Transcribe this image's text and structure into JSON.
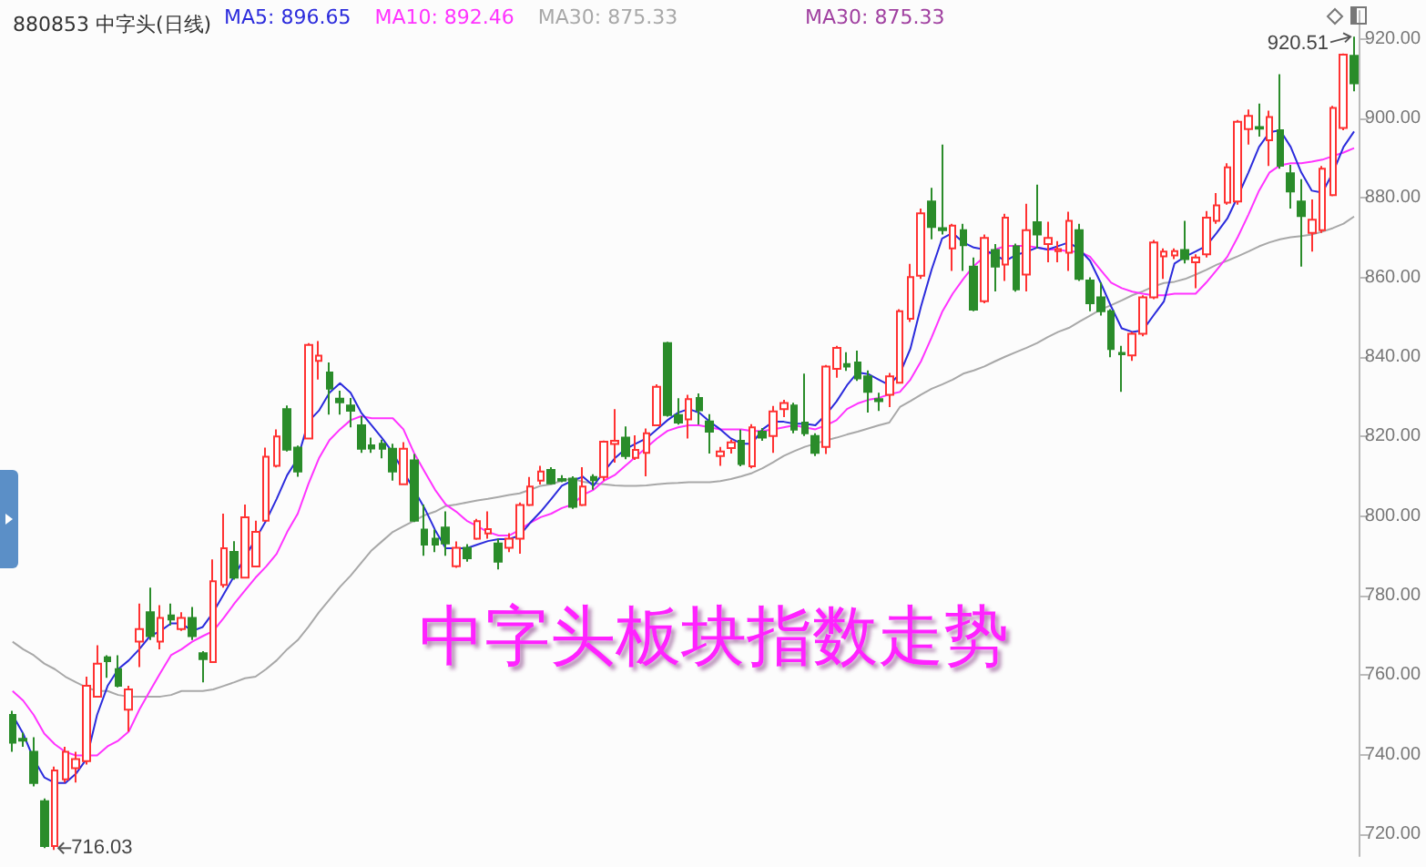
{
  "chart_data": {
    "type": "candlestick",
    "title": "880853 中字头(日线)",
    "legend": "top left",
    "tick_labels": "y",
    "annotations": [
      "920.51",
      "716.03",
      "中字头板块指数走势",
      "MA30: 875.33"
    ],
    "ylim": [
      714.5,
      927
    ],
    "yticks": [
      {
        "value": 720,
        "label": "720.00"
      },
      {
        "value": 740,
        "label": "740.00"
      },
      {
        "value": 760,
        "label": "760.00"
      },
      {
        "value": 780,
        "label": "780.00"
      },
      {
        "value": 800,
        "label": "800.00"
      },
      {
        "value": 820,
        "label": "820.00"
      },
      {
        "value": 840,
        "label": "840.00"
      },
      {
        "value": 860,
        "label": "860.00"
      },
      {
        "value": 880,
        "label": "880.00"
      },
      {
        "value": 900,
        "label": "900.00"
      },
      {
        "value": 920,
        "label": "920.00"
      }
    ],
    "categories": [
      null,
      null,
      null,
      null,
      null,
      null,
      null,
      null,
      null,
      null,
      null,
      null,
      null,
      null,
      null,
      null,
      null,
      null,
      null,
      null,
      null,
      null,
      null,
      null,
      null,
      null,
      null,
      null,
      null,
      null,
      null,
      null,
      null,
      null,
      null,
      null,
      null,
      null,
      null,
      null,
      null,
      null,
      null,
      null,
      null,
      null,
      null,
      null,
      null,
      null,
      null,
      null,
      null,
      null,
      null,
      null,
      null,
      null,
      null,
      null,
      null,
      null,
      null,
      null,
      null,
      null,
      null,
      null,
      null,
      null,
      null,
      null,
      null,
      null,
      null,
      null,
      null,
      null,
      null,
      null,
      null,
      null,
      null,
      null,
      null,
      null,
      null,
      null,
      null,
      null,
      null,
      null,
      null,
      null,
      null,
      null,
      null,
      null,
      null,
      null,
      null,
      null,
      null,
      null,
      null,
      null,
      null,
      null,
      null,
      null,
      null,
      null,
      null,
      null,
      null,
      null,
      null,
      null,
      null,
      null,
      null,
      null,
      null,
      null,
      null,
      null,
      null,
      null
    ],
    "series": [
      {
        "type": "line",
        "name": "MA30: 875.33",
        "color": "#a8a8a8",
        "values": [
          768.4,
          766.5,
          765,
          762.9,
          761.5,
          759.6,
          758.2,
          756.9,
          756,
          756,
          755,
          754.6,
          754.6,
          754.6,
          754.6,
          755,
          756,
          756,
          756,
          756.4,
          757.3,
          758.2,
          759.2,
          759.6,
          761.5,
          763.7,
          766.5,
          768.8,
          772.1,
          775.8,
          779,
          782.2,
          785,
          788.2,
          791.4,
          793.7,
          796,
          797.4,
          798.8,
          800.2,
          801.1,
          802.5,
          802.9,
          803.4,
          803.9,
          804.3,
          804.8,
          805.3,
          805.7,
          806.6,
          807.6,
          808,
          808.9,
          809.4,
          808.6,
          808.2,
          808,
          807.7,
          807.6,
          807.6,
          807.7,
          808,
          808.2,
          808.3,
          808.5,
          808.5,
          808.5,
          808.8,
          809.3,
          810,
          810.8,
          812,
          813.5,
          815.1,
          816.3,
          817.4,
          818.2,
          819,
          819.7,
          820.5,
          821.2,
          822,
          822.8,
          823.5,
          827.4,
          828.9,
          830.5,
          832,
          833.1,
          834.3,
          835.8,
          836.6,
          837.6,
          838.9,
          840.1,
          841.2,
          842.3,
          843.5,
          845,
          846.3,
          847.3,
          848.9,
          850.4,
          851.9,
          853,
          854.2,
          855.5,
          856.5,
          857.7,
          858.6,
          858.9,
          859.6,
          860.7,
          861.9,
          863.2,
          864.2,
          865.3,
          866.5,
          867.8,
          868.8,
          869.6,
          870.1,
          870.4,
          870.8,
          871.5,
          872.4,
          873.5,
          875.3
        ]
      },
      {
        "type": "line",
        "name": "MA10: 892.46",
        "color": "#ff33ff",
        "values": [
          756,
          753.6,
          750,
          745.3,
          742.6,
          740.7,
          739.8,
          739.8,
          739.8,
          742.1,
          743.5,
          745.8,
          751.3,
          756,
          760.6,
          765,
          766.5,
          768.4,
          769.8,
          771.1,
          774.4,
          778,
          781.3,
          784.5,
          787.3,
          790.5,
          796,
          800.6,
          808,
          814.5,
          819.1,
          821.8,
          824.1,
          825.1,
          824.6,
          824.6,
          824.6,
          821.8,
          815.9,
          811.2,
          806.6,
          802.9,
          801.1,
          798.8,
          797.4,
          796,
          795.1,
          795.1,
          796.5,
          798.3,
          799.7,
          800.6,
          802,
          802.9,
          805.3,
          806.6,
          808.9,
          810.3,
          812.6,
          814.9,
          817.2,
          819.5,
          821.4,
          822.3,
          822.8,
          822.8,
          822.3,
          821.8,
          821.8,
          821.8,
          821.4,
          821.4,
          821.8,
          822.3,
          822.8,
          822.3,
          821.8,
          822.8,
          824.1,
          826.9,
          828.3,
          829.2,
          829.7,
          830.6,
          831.2,
          834.3,
          838.9,
          844.9,
          851.3,
          855.9,
          859.6,
          862.9,
          865.2,
          867,
          867.9,
          867.9,
          867.9,
          867.5,
          867,
          867,
          866.5,
          866.5,
          865.2,
          861.9,
          858.7,
          857.3,
          856.4,
          855.9,
          855.5,
          855.5,
          855.9,
          855.9,
          855.9,
          858.7,
          861.9,
          865.2,
          870.2,
          875.8,
          881.8,
          886.4,
          888.2,
          888.7,
          888.7,
          889.1,
          889.6,
          890.5,
          891.4,
          892.5
        ]
      },
      {
        "type": "line",
        "name": "MA5: 896.65",
        "color": "#2b2bdc",
        "values": [
          750,
          745.3,
          738.9,
          734.3,
          732.9,
          732.9,
          735.2,
          738.9,
          750,
          757.3,
          761.5,
          763.7,
          766.5,
          769.8,
          771.1,
          773,
          773,
          771.1,
          772.1,
          775.8,
          780.4,
          785,
          789.6,
          794.2,
          798.8,
          804.3,
          810.3,
          814.5,
          823.7,
          826.5,
          831,
          833.4,
          831,
          826,
          822.8,
          819.5,
          815.9,
          811.2,
          806.6,
          802,
          796.5,
          791.9,
          791.9,
          791.9,
          792.8,
          793.7,
          794.2,
          794.2,
          795.1,
          798.3,
          801.1,
          804.3,
          807.6,
          808.9,
          809.9,
          807.6,
          811.2,
          814.5,
          816.8,
          818.2,
          819.5,
          821.8,
          824.1,
          826,
          826.9,
          826,
          823.7,
          821.8,
          819.5,
          818.2,
          818.2,
          821.8,
          823.7,
          823.7,
          823.2,
          823.2,
          822.8,
          825.5,
          828.8,
          832.9,
          836.1,
          835.7,
          834.3,
          832.9,
          835.8,
          842.1,
          852.7,
          861.9,
          869.8,
          871.2,
          868.8,
          867.5,
          867,
          865.6,
          864.2,
          865.6,
          866.5,
          867.5,
          867,
          867.9,
          868.8,
          867,
          864.2,
          858.7,
          852.7,
          847.2,
          846.3,
          846.7,
          850.4,
          854,
          863.5,
          865.2,
          866.5,
          867.9,
          871.2,
          874.8,
          880.4,
          886.4,
          892.8,
          896.5,
          897,
          892.8,
          886.4,
          881.8,
          881.3,
          886.4,
          892.8,
          896.7
        ]
      },
      {
        "colors": [
          "#2a8c2a",
          "#2a8c2a",
          "#2a8c2a",
          "#2a8c2a",
          "#ff3232",
          "#ff3232",
          "#ff3232",
          "#ff3232",
          "#ff3232",
          "#2a8c2a",
          "#2a8c2a",
          "#ff3232",
          "#ff3232",
          "#2a8c2a",
          "#ff3232",
          "#2a8c2a",
          "#ff3232",
          "#2a8c2a",
          "#2a8c2a",
          "#ff3232",
          "#ff3232",
          "#2a8c2a",
          "#ff3232",
          "#ff3232",
          "#ff3232",
          "#ff3232",
          "#2a8c2a",
          "#2a8c2a",
          "#ff3232",
          "#ff3232",
          "#2a8c2a",
          "#2a8c2a",
          "#2a8c2a",
          "#2a8c2a",
          "#2a8c2a",
          "#2a8c2a",
          "#2a8c2a",
          "#ff3232",
          "#2a8c2a",
          "#2a8c2a",
          "#2a8c2a",
          "#2a8c2a",
          "#ff3232",
          "#2a8c2a",
          "#ff3232",
          "#ff3232",
          "#2a8c2a",
          "#ff3232",
          "#ff3232",
          "#ff3232",
          "#ff3232",
          "#2a8c2a",
          "#2a8c2a",
          "#2a8c2a",
          "#ff3232",
          "#2a8c2a",
          "#ff3232",
          "#ff3232",
          "#2a8c2a",
          "#ff3232",
          "#ff3232",
          "#ff3232",
          "#2a8c2a",
          "#2a8c2a",
          "#ff3232",
          "#2a8c2a",
          "#2a8c2a",
          "#ff3232",
          "#ff3232",
          "#2a8c2a",
          "#ff3232",
          "#2a8c2a",
          "#ff3232",
          "#ff3232",
          "#2a8c2a",
          "#2a8c2a",
          "#2a8c2a",
          "#ff3232",
          "#ff3232",
          "#2a8c2a",
          "#2a8c2a",
          "#2a8c2a",
          "#2a8c2a",
          "#ff3232",
          "#ff3232",
          "#ff3232",
          "#ff3232",
          "#2a8c2a",
          "#2a8c2a",
          "#ff3232",
          "#2a8c2a",
          "#2a8c2a",
          "#ff3232",
          "#2a8c2a",
          "#ff3232",
          "#2a8c2a",
          "#ff3232",
          "#2a8c2a",
          "#ff3232",
          "#ff3232",
          "#ff3232",
          "#2a8c2a",
          "#2a8c2a",
          "#2a8c2a",
          "#2a8c2a",
          "#2a8c2a",
          "#ff3232",
          "#ff3232",
          "#ff3232",
          "#ff3232",
          "#ff3232",
          "#2a8c2a",
          "#ff3232",
          "#ff3232",
          "#ff3232",
          "#ff3232",
          "#ff3232",
          "#ff3232",
          "#2a8c2a",
          "#ff3232",
          "#2a8c2a",
          "#2a8c2a",
          "#2a8c2a",
          "#ff3232",
          "#ff3232",
          "#ff3232",
          "#ff3232",
          "#2a8c2a"
        ],
        "ohlc": [
          [
            750,
            751,
            740.7,
            743
          ],
          [
            744,
            745.5,
            742,
            743.5
          ],
          [
            740.7,
            744.4,
            732,
            732.9
          ],
          [
            728.3,
            729,
            716.5,
            717
          ],
          [
            717,
            737,
            716.03,
            736
          ],
          [
            733.8,
            742,
            733,
            740.7
          ],
          [
            736.6,
            740.7,
            733,
            738.9
          ],
          [
            738.4,
            759.6,
            737.5,
            757.3
          ],
          [
            754.6,
            767.5,
            754.6,
            762.9
          ],
          [
            764.5,
            765,
            759.3,
            763.5
          ],
          [
            761.5,
            765,
            756.9,
            757.3
          ],
          [
            751.3,
            757.3,
            745.8,
            756.4
          ],
          [
            768.4,
            778,
            762,
            771.6
          ],
          [
            775.8,
            782,
            768.8,
            769.8
          ],
          [
            768.4,
            777.6,
            766.5,
            774.4
          ],
          [
            775,
            778,
            772.5,
            774
          ],
          [
            771.6,
            775.8,
            771.1,
            774.4
          ],
          [
            774.4,
            777.1,
            768.8,
            769.8
          ],
          [
            765.5,
            766,
            758.2,
            764
          ],
          [
            763.3,
            789.1,
            763.3,
            783.6
          ],
          [
            782.7,
            800.6,
            782,
            791.9
          ],
          [
            791,
            793.7,
            784,
            784.5
          ],
          [
            784.5,
            802.9,
            784.5,
            799.7
          ],
          [
            787.3,
            798.8,
            787.3,
            796
          ],
          [
            798.8,
            817.2,
            798.8,
            814.9
          ],
          [
            812.6,
            821.8,
            812.2,
            820
          ],
          [
            826.9,
            827.8,
            816.2,
            816.7
          ],
          [
            817.2,
            817.7,
            809.9,
            811.2
          ],
          [
            819.5,
            843.5,
            819.5,
            843
          ],
          [
            839,
            844,
            834.3,
            840.3
          ],
          [
            836.1,
            838.6,
            825.5,
            832
          ],
          [
            829.5,
            831.5,
            825.5,
            828.6
          ],
          [
            827.8,
            829.7,
            822.3,
            826.5
          ],
          [
            822.8,
            825.1,
            815.9,
            816.9
          ],
          [
            817.8,
            819.7,
            815.9,
            817
          ],
          [
            818.2,
            819.2,
            814.5,
            816.9
          ],
          [
            816.9,
            818.2,
            808.9,
            811.2
          ],
          [
            808,
            818.6,
            807.9,
            816.9
          ],
          [
            814,
            815.6,
            798.5,
            798.8
          ],
          [
            796.6,
            802.9,
            790,
            792.8
          ],
          [
            794.3,
            796.6,
            790.9,
            792.8
          ],
          [
            797.1,
            801.2,
            790,
            793.1
          ],
          [
            787.4,
            793.6,
            787,
            792
          ],
          [
            792,
            792.9,
            788.5,
            789.4
          ],
          [
            794.3,
            799.3,
            794,
            798.7
          ],
          [
            795.6,
            801.2,
            794.3,
            796.7
          ],
          [
            793.1,
            794.3,
            786.6,
            788.5
          ],
          [
            792,
            795.7,
            790.9,
            794.3
          ],
          [
            794.3,
            803.4,
            790.5,
            802.8
          ],
          [
            802.8,
            809.8,
            802.5,
            807.4
          ],
          [
            808.9,
            812.6,
            807.9,
            811.2
          ],
          [
            811.6,
            812.3,
            807.9,
            808.2
          ],
          [
            809.3,
            810.3,
            808.5,
            808.9
          ],
          [
            809.4,
            810,
            801.8,
            802.3
          ],
          [
            802.8,
            812.3,
            802.5,
            807.4
          ],
          [
            809.8,
            810.5,
            806.6,
            809
          ],
          [
            809.8,
            819,
            808.9,
            818.7
          ],
          [
            818.1,
            826.9,
            813.4,
            818.9
          ],
          [
            819.7,
            822.5,
            814.3,
            815.1
          ],
          [
            814.6,
            820.3,
            814.1,
            816.6
          ],
          [
            815.9,
            822,
            810,
            820.8
          ],
          [
            822.8,
            833.1,
            822.7,
            832.5
          ],
          [
            843.5,
            843.8,
            825,
            825.4
          ],
          [
            825.4,
            829.6,
            823,
            823.5
          ],
          [
            824.3,
            830.5,
            819.5,
            829.4
          ],
          [
            829.7,
            830.8,
            823,
            826.6
          ],
          [
            823.8,
            825.6,
            815.7,
            821.2
          ],
          [
            815.1,
            817.4,
            812.6,
            816.2
          ],
          [
            817.1,
            819.2,
            815.7,
            818.5
          ],
          [
            818.9,
            821.7,
            812.5,
            813.1
          ],
          [
            812.5,
            823.1,
            812,
            822.3
          ],
          [
            821.2,
            822.1,
            818.9,
            819.7
          ],
          [
            820.1,
            827.7,
            815.9,
            826.3
          ],
          [
            826.9,
            829.2,
            824.9,
            828.4
          ],
          [
            827.8,
            828.5,
            820.8,
            821.7
          ],
          [
            823.5,
            835.8,
            820.1,
            820.8
          ],
          [
            820.1,
            820.8,
            815.1,
            815.9
          ],
          [
            817.4,
            838,
            815.6,
            837.6
          ],
          [
            837,
            842.8,
            834.8,
            842.3
          ],
          [
            838.2,
            841.2,
            836.5,
            837.6
          ],
          [
            838.6,
            841.6,
            834,
            834.6
          ],
          [
            835.1,
            836.6,
            826,
            831.2
          ],
          [
            829.4,
            831,
            826.4,
            828.9
          ],
          [
            830.5,
            836,
            827.4,
            835.1
          ],
          [
            833.5,
            852,
            833.5,
            851.5
          ],
          [
            849.6,
            863.4,
            848.8,
            860.1
          ],
          [
            860.4,
            877.3,
            859.6,
            876.1
          ],
          [
            879.1,
            882.5,
            869.6,
            872.7
          ],
          [
            872.4,
            893.4,
            870.8,
            871.9
          ],
          [
            867.3,
            873.5,
            861.6,
            873
          ],
          [
            871.9,
            873.5,
            861.6,
            868.1
          ],
          [
            862.7,
            865,
            851.5,
            851.9
          ],
          [
            854,
            870.8,
            853.5,
            869.9
          ],
          [
            866.9,
            868.4,
            856.5,
            862.7
          ],
          [
            863.2,
            876,
            859.1,
            875
          ],
          [
            867.8,
            868.5,
            856.4,
            857
          ],
          [
            860.7,
            878.5,
            856.5,
            871.9
          ],
          [
            873.9,
            883.3,
            867.3,
            870.8
          ],
          [
            868.4,
            874,
            863.8,
            869.9
          ],
          [
            866.6,
            869.1,
            863.8,
            867.1
          ],
          [
            866.2,
            876.5,
            861.6,
            874.2
          ],
          [
            871.9,
            873.5,
            859.1,
            859.6
          ],
          [
            859.2,
            860,
            851.5,
            853.5
          ],
          [
            855,
            858.7,
            850.4,
            851.5
          ],
          [
            851.5,
            852,
            839.9,
            842
          ],
          [
            841,
            842.8,
            831.2,
            840.7
          ],
          [
            840.4,
            846.3,
            839,
            845.8
          ],
          [
            845.8,
            855.5,
            845.2,
            855
          ],
          [
            855,
            869.4,
            854.5,
            868.8
          ],
          [
            865.3,
            867.3,
            859.6,
            866.5
          ],
          [
            865.5,
            867.3,
            864.6,
            866.6
          ],
          [
            866.9,
            874.2,
            863.5,
            864.6
          ],
          [
            863.8,
            865.8,
            857.3,
            865
          ],
          [
            865.8,
            876.7,
            865,
            875
          ],
          [
            874.2,
            881.2,
            873.5,
            878.1
          ],
          [
            878.8,
            888.7,
            878.3,
            887.7
          ],
          [
            879.1,
            899.6,
            878.3,
            899.1
          ],
          [
            897.3,
            902.2,
            893.4,
            900.6
          ],
          [
            897.8,
            903.7,
            895.4,
            897.4
          ],
          [
            894.5,
            901.9,
            888,
            900.3
          ],
          [
            897,
            911.1,
            887.3,
            888.1
          ],
          [
            886.2,
            888.3,
            877.3,
            881.6
          ],
          [
            879.1,
            884.7,
            862.7,
            875.4
          ],
          [
            871.2,
            879.6,
            866.5,
            874.5
          ],
          [
            871.9,
            888,
            871.2,
            887.3
          ],
          [
            880.7,
            903.1,
            880.4,
            902.6
          ],
          [
            897.6,
            916.3,
            897,
            916
          ],
          [
            915.7,
            920.51,
            906.8,
            908.8
          ]
        ]
      }
    ]
  }
}
